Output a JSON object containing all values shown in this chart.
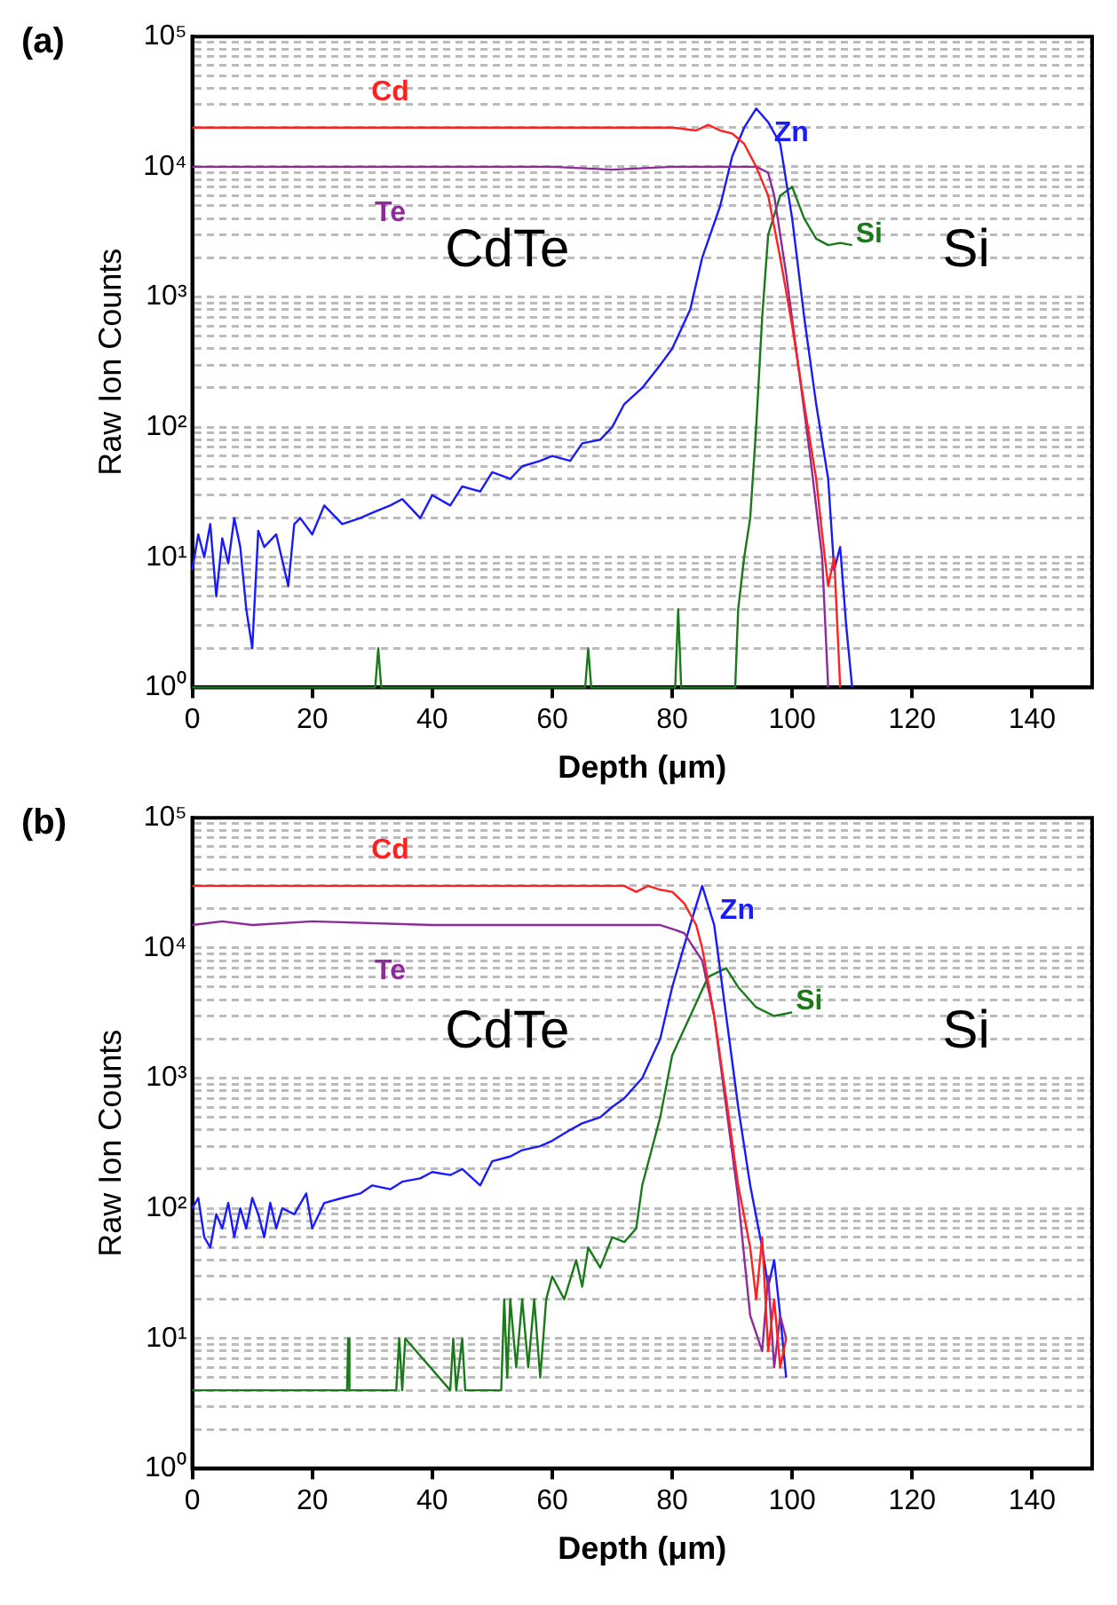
{
  "chart_data": [
    {
      "type": "line",
      "title": "(a)",
      "xlabel": "Depth (μm)",
      "ylabel": "Raw Ion Counts",
      "log": "y",
      "grid": "y",
      "legend": false,
      "marker": "none",
      "line_style": "solid",
      "xlim": [
        0,
        150
      ],
      "xticks": [
        0,
        20,
        40,
        60,
        80,
        100,
        120,
        140
      ],
      "ylim": [
        1,
        100000
      ],
      "yticks": [
        {
          "value": 1,
          "label": "10⁰"
        },
        {
          "value": 2,
          "label": null
        },
        {
          "value": 3,
          "label": null
        },
        {
          "value": 4,
          "label": null
        },
        {
          "value": 5,
          "label": null
        },
        {
          "value": 6,
          "label": null
        },
        {
          "value": 7,
          "label": null
        },
        {
          "value": 8,
          "label": null
        },
        {
          "value": 9,
          "label": null
        },
        {
          "value": 10,
          "label": "10¹"
        },
        {
          "value": 20,
          "label": null
        },
        {
          "value": 30,
          "label": null
        },
        {
          "value": 40,
          "label": null
        },
        {
          "value": 50,
          "label": null
        },
        {
          "value": 60,
          "label": null
        },
        {
          "value": 70,
          "label": null
        },
        {
          "value": 80,
          "label": null
        },
        {
          "value": 90,
          "label": null
        },
        {
          "value": 100,
          "label": "10²"
        },
        {
          "value": 200,
          "label": null
        },
        {
          "value": 300,
          "label": null
        },
        {
          "value": 400,
          "label": null
        },
        {
          "value": 500,
          "label": null
        },
        {
          "value": 600,
          "label": null
        },
        {
          "value": 700,
          "label": null
        },
        {
          "value": 800,
          "label": null
        },
        {
          "value": 900,
          "label": null
        },
        {
          "value": 1000,
          "label": "10³"
        },
        {
          "value": 2000,
          "label": null
        },
        {
          "value": 3000,
          "label": null
        },
        {
          "value": 4000,
          "label": null
        },
        {
          "value": 5000,
          "label": null
        },
        {
          "value": 6000,
          "label": null
        },
        {
          "value": 7000,
          "label": null
        },
        {
          "value": 8000,
          "label": null
        },
        {
          "value": 9000,
          "label": null
        },
        {
          "value": 10000,
          "label": "10⁴"
        },
        {
          "value": 20000,
          "label": null
        },
        {
          "value": 30000,
          "label": null
        },
        {
          "value": 40000,
          "label": null
        },
        {
          "value": 50000,
          "label": null
        },
        {
          "value": 60000,
          "label": null
        },
        {
          "value": 70000,
          "label": null
        },
        {
          "value": 80000,
          "label": null
        },
        {
          "value": 90000,
          "label": null
        },
        {
          "value": 100000,
          "label": "10⁵"
        }
      ],
      "annotations": [
        "CdTe",
        "Si"
      ],
      "series": [
        {
          "name": "Cd",
          "color": "#ff2020",
          "x": [
            0,
            20,
            40,
            60,
            80,
            84,
            86,
            88,
            90,
            92,
            94,
            96,
            98,
            100,
            102,
            104,
            105,
            106,
            107,
            108
          ],
          "values": [
            20000,
            20000,
            20000,
            20000,
            20000,
            19000,
            21000,
            19000,
            18000,
            15000,
            10000,
            6000,
            2000,
            600,
            150,
            40,
            15,
            6,
            10,
            1
          ]
        },
        {
          "name": "Te",
          "color": "#8e2a9a",
          "x": [
            0,
            20,
            40,
            60,
            70,
            80,
            90,
            92,
            94,
            96,
            97,
            99,
            101,
            103,
            105,
            106
          ],
          "values": [
            10000,
            10000,
            10000,
            10000,
            9500,
            10000,
            10000,
            10000,
            10000,
            9000,
            6000,
            1500,
            300,
            60,
            10,
            1
          ]
        },
        {
          "name": "Zn",
          "color": "#1a1aff",
          "x": [
            0,
            1,
            2,
            3,
            4,
            5,
            6,
            7,
            8,
            9,
            10,
            11,
            12,
            14,
            16,
            17,
            18,
            20,
            22,
            25,
            28,
            30,
            33,
            35,
            38,
            40,
            43,
            45,
            48,
            50,
            53,
            55,
            58,
            60,
            63,
            65,
            68,
            70,
            72,
            75,
            78,
            80,
            83,
            85,
            88,
            90,
            92,
            94,
            96,
            98,
            100,
            102,
            104,
            106,
            107,
            108,
            109,
            110
          ],
          "values": [
            8,
            15,
            10,
            18,
            5,
            14,
            9,
            20,
            12,
            4,
            2,
            16,
            12,
            15,
            6,
            18,
            20,
            15,
            25,
            18,
            20,
            22,
            25,
            28,
            20,
            30,
            25,
            35,
            32,
            45,
            40,
            50,
            55,
            60,
            55,
            75,
            80,
            100,
            150,
            200,
            300,
            400,
            800,
            2000,
            5000,
            12000,
            20000,
            28000,
            22000,
            15000,
            4000,
            700,
            150,
            40,
            8,
            12,
            3,
            1
          ]
        },
        {
          "name": "Si",
          "color": "#1a7a1a",
          "x": [
            0,
            30.5,
            31,
            31.5,
            65.5,
            66,
            66.5,
            80.5,
            81,
            81.5,
            90.5,
            91,
            92,
            93,
            94,
            95,
            96,
            98,
            100,
            102,
            104,
            106,
            108,
            110
          ],
          "values": [
            1,
            1,
            2,
            1,
            1,
            2,
            1,
            1,
            4,
            1,
            1,
            4,
            10,
            20,
            100,
            700,
            3000,
            6000,
            7000,
            4000,
            2800,
            2500,
            2600,
            2500
          ]
        }
      ]
    },
    {
      "type": "line",
      "title": "(b)",
      "xlabel": "Depth (μm)",
      "ylabel": "Raw Ion Counts",
      "log": "y",
      "grid": "y",
      "legend": false,
      "marker": "none",
      "line_style": "solid",
      "xlim": [
        0,
        150
      ],
      "xticks": [
        0,
        20,
        40,
        60,
        80,
        100,
        120,
        140
      ],
      "ylim": [
        1,
        100000
      ],
      "yticks": [
        {
          "value": 1,
          "label": "10⁰"
        },
        {
          "value": 2,
          "label": null
        },
        {
          "value": 3,
          "label": null
        },
        {
          "value": 4,
          "label": null
        },
        {
          "value": 5,
          "label": null
        },
        {
          "value": 6,
          "label": null
        },
        {
          "value": 7,
          "label": null
        },
        {
          "value": 8,
          "label": null
        },
        {
          "value": 9,
          "label": null
        },
        {
          "value": 10,
          "label": "10¹"
        },
        {
          "value": 20,
          "label": null
        },
        {
          "value": 30,
          "label": null
        },
        {
          "value": 40,
          "label": null
        },
        {
          "value": 50,
          "label": null
        },
        {
          "value": 60,
          "label": null
        },
        {
          "value": 70,
          "label": null
        },
        {
          "value": 80,
          "label": null
        },
        {
          "value": 90,
          "label": null
        },
        {
          "value": 100,
          "label": "10²"
        },
        {
          "value": 200,
          "label": null
        },
        {
          "value": 300,
          "label": null
        },
        {
          "value": 400,
          "label": null
        },
        {
          "value": 500,
          "label": null
        },
        {
          "value": 600,
          "label": null
        },
        {
          "value": 700,
          "label": null
        },
        {
          "value": 800,
          "label": null
        },
        {
          "value": 900,
          "label": null
        },
        {
          "value": 1000,
          "label": "10³"
        },
        {
          "value": 2000,
          "label": null
        },
        {
          "value": 3000,
          "label": null
        },
        {
          "value": 4000,
          "label": null
        },
        {
          "value": 5000,
          "label": null
        },
        {
          "value": 6000,
          "label": null
        },
        {
          "value": 7000,
          "label": null
        },
        {
          "value": 8000,
          "label": null
        },
        {
          "value": 9000,
          "label": null
        },
        {
          "value": 10000,
          "label": "10⁴"
        },
        {
          "value": 20000,
          "label": null
        },
        {
          "value": 30000,
          "label": null
        },
        {
          "value": 40000,
          "label": null
        },
        {
          "value": 50000,
          "label": null
        },
        {
          "value": 60000,
          "label": null
        },
        {
          "value": 70000,
          "label": null
        },
        {
          "value": 80000,
          "label": null
        },
        {
          "value": 90000,
          "label": null
        },
        {
          "value": 100000,
          "label": "10⁵"
        }
      ],
      "annotations": [
        "CdTe",
        "Si"
      ],
      "series": [
        {
          "name": "Cd",
          "color": "#ff2020",
          "x": [
            0,
            20,
            40,
            60,
            72,
            74,
            76,
            78,
            80,
            82,
            84,
            85,
            87,
            89,
            91,
            93,
            94,
            95,
            96,
            97,
            98,
            99
          ],
          "values": [
            30000,
            30000,
            30000,
            30000,
            30000,
            27000,
            30000,
            28000,
            27000,
            22000,
            15000,
            10000,
            3000,
            700,
            150,
            50,
            20,
            60,
            8,
            20,
            6,
            10
          ]
        },
        {
          "name": "Te",
          "color": "#8e2a9a",
          "x": [
            0,
            5,
            10,
            20,
            40,
            60,
            78,
            80,
            82,
            85,
            87,
            89,
            91,
            93,
            95,
            96,
            97,
            98,
            99
          ],
          "values": [
            15000,
            16000,
            15000,
            16000,
            15000,
            15000,
            15000,
            14000,
            13000,
            8000,
            3000,
            600,
            120,
            15,
            8,
            30,
            6,
            15,
            10
          ]
        },
        {
          "name": "Zn",
          "color": "#1a1aff",
          "x": [
            0,
            1,
            2,
            3,
            4,
            5,
            6,
            7,
            8,
            9,
            10,
            11,
            12,
            13,
            14,
            15,
            17,
            19,
            20,
            22,
            25,
            28,
            30,
            33,
            35,
            38,
            40,
            43,
            45,
            48,
            50,
            53,
            55,
            58,
            60,
            63,
            65,
            68,
            70,
            72,
            75,
            78,
            80,
            83,
            85,
            87,
            89,
            91,
            93,
            95,
            96,
            97,
            98,
            99
          ],
          "values": [
            100,
            120,
            60,
            50,
            90,
            70,
            110,
            60,
            100,
            70,
            120,
            90,
            60,
            110,
            70,
            100,
            90,
            130,
            70,
            110,
            120,
            130,
            150,
            140,
            160,
            170,
            190,
            180,
            200,
            150,
            230,
            250,
            280,
            300,
            330,
            400,
            450,
            500,
            600,
            700,
            1000,
            2000,
            5000,
            15000,
            30000,
            15000,
            3000,
            600,
            150,
            50,
            25,
            40,
            15,
            5
          ]
        },
        {
          "name": "Si",
          "color": "#1a7a1a",
          "x": [
            0,
            25.8,
            26,
            26.2,
            34,
            34.5,
            35,
            35.5,
            43,
            43.5,
            44,
            45,
            45.5,
            46,
            51.5,
            52,
            52.5,
            53,
            54,
            55,
            56,
            57,
            58,
            59,
            60,
            62,
            64,
            65,
            66,
            68,
            70,
            72,
            74,
            75,
            78,
            80,
            83,
            86,
            89,
            91,
            94,
            97,
            100
          ],
          "values": [
            4,
            4,
            10,
            4,
            4,
            10,
            4,
            10,
            4,
            10,
            4,
            10,
            4,
            4,
            4,
            20,
            5,
            20,
            6,
            20,
            6,
            20,
            5,
            20,
            30,
            20,
            40,
            25,
            50,
            35,
            60,
            55,
            70,
            150,
            500,
            1500,
            3000,
            6000,
            7000,
            5000,
            3500,
            3000,
            3200
          ]
        }
      ]
    }
  ]
}
